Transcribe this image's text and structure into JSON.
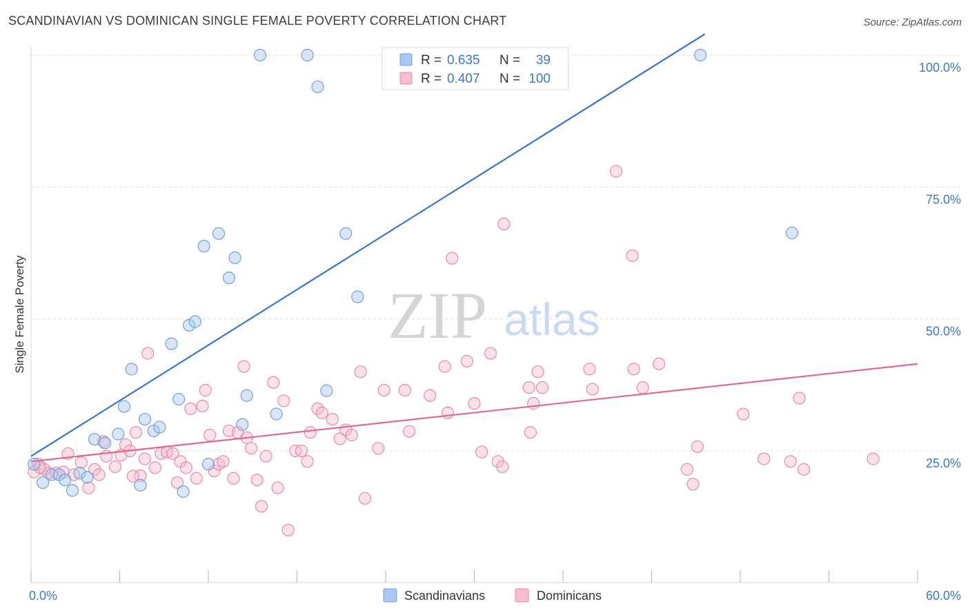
{
  "header": {
    "title": "SCANDINAVIAN VS DOMINICAN SINGLE FEMALE POVERTY CORRELATION CHART",
    "source": "Source: ZipAtlas.com"
  },
  "watermark": {
    "zip": "ZIP",
    "atlas": "atlas"
  },
  "colors": {
    "scandinavian_fill": "#a9c8f0",
    "scandinavian_stroke": "#6fa0dc",
    "scandinavian_line": "#2f74cf",
    "dominican_fill": "#f7bccd",
    "dominican_stroke": "#e88aa6",
    "dominican_line": "#e06890",
    "value_text": "#3a78c9",
    "grid": "#dcdcdc"
  },
  "legend_box": {
    "rows": [
      {
        "r_label": "R =",
        "r_value": "0.635",
        "n_label": "N =",
        "n_value": "39"
      },
      {
        "r_label": "R =",
        "r_value": "0.407",
        "n_label": "N =",
        "n_value": "100"
      }
    ]
  },
  "chart_data": {
    "type": "scatter",
    "title": "SCANDINAVIAN VS DOMINICAN SINGLE FEMALE POVERTY CORRELATION CHART",
    "xlabel": "",
    "ylabel": "Single Female Poverty",
    "xlim": [
      0,
      60
    ],
    "ylim": [
      0,
      104
    ],
    "x_tick_labels": [
      "0.0%",
      "60.0%"
    ],
    "y_ticks": [
      25,
      50,
      75,
      100
    ],
    "y_tick_labels": [
      "25.0%",
      "50.0%",
      "75.0%",
      "100.0%"
    ],
    "grid": true,
    "legend_position": "bottom-center",
    "series": [
      {
        "name": "Scandinavians",
        "r": 0.635,
        "n": 39,
        "trend": {
          "x": [
            0,
            45.6
          ],
          "y": [
            24.0,
            104.0
          ]
        },
        "points": [
          [
            0.2,
            22.5
          ],
          [
            0.8,
            19.0
          ],
          [
            1.4,
            20.5
          ],
          [
            1.9,
            20.5
          ],
          [
            2.3,
            19.5
          ],
          [
            2.8,
            17.5
          ],
          [
            3.3,
            20.8
          ],
          [
            3.8,
            20.0
          ],
          [
            4.3,
            27.2
          ],
          [
            5.0,
            26.5
          ],
          [
            5.9,
            28.2
          ],
          [
            6.3,
            33.4
          ],
          [
            6.8,
            40.5
          ],
          [
            7.4,
            18.5
          ],
          [
            7.7,
            31.0
          ],
          [
            8.3,
            28.8
          ],
          [
            8.7,
            29.5
          ],
          [
            9.5,
            45.3
          ],
          [
            10.0,
            34.8
          ],
          [
            10.3,
            17.3
          ],
          [
            10.7,
            48.8
          ],
          [
            11.1,
            49.5
          ],
          [
            11.7,
            63.8
          ],
          [
            12.0,
            22.5
          ],
          [
            12.7,
            66.2
          ],
          [
            13.4,
            57.8
          ],
          [
            13.8,
            61.6
          ],
          [
            14.3,
            30.0
          ],
          [
            14.6,
            35.5
          ],
          [
            15.5,
            100.0
          ],
          [
            16.6,
            32.0
          ],
          [
            18.7,
            100.0
          ],
          [
            19.4,
            94.0
          ],
          [
            20.0,
            36.4
          ],
          [
            21.3,
            66.2
          ],
          [
            22.1,
            54.2
          ],
          [
            24.3,
            100.0
          ],
          [
            45.3,
            100.0
          ],
          [
            51.5,
            66.3
          ]
        ]
      },
      {
        "name": "Dominicans",
        "r": 0.407,
        "n": 100,
        "trend": {
          "x": [
            0,
            60
          ],
          "y": [
            23.0,
            41.5
          ]
        },
        "points": [
          [
            0.2,
            21.0
          ],
          [
            0.5,
            22.5
          ],
          [
            0.9,
            21.5
          ],
          [
            1.2,
            20.8
          ],
          [
            1.7,
            20.8
          ],
          [
            2.2,
            21.0
          ],
          [
            2.5,
            24.5
          ],
          [
            2.9,
            20.5
          ],
          [
            3.4,
            22.8
          ],
          [
            3.9,
            18.0
          ],
          [
            4.3,
            21.5
          ],
          [
            4.6,
            20.5
          ],
          [
            4.9,
            26.8
          ],
          [
            5.1,
            24.0
          ],
          [
            5.7,
            22.0
          ],
          [
            6.1,
            24.2
          ],
          [
            6.4,
            26.2
          ],
          [
            6.7,
            25.0
          ],
          [
            7.1,
            28.5
          ],
          [
            7.4,
            20.3
          ],
          [
            7.7,
            23.5
          ],
          [
            7.9,
            43.5
          ],
          [
            8.4,
            21.8
          ],
          [
            8.8,
            24.5
          ],
          [
            9.2,
            24.8
          ],
          [
            9.6,
            24.5
          ],
          [
            9.9,
            19.0
          ],
          [
            10.1,
            23.0
          ],
          [
            10.5,
            21.8
          ],
          [
            10.8,
            33.0
          ],
          [
            11.2,
            19.8
          ],
          [
            11.6,
            33.5
          ],
          [
            11.8,
            36.5
          ],
          [
            12.1,
            28.0
          ],
          [
            12.4,
            21.2
          ],
          [
            12.7,
            22.5
          ],
          [
            13.0,
            23.0
          ],
          [
            13.4,
            28.8
          ],
          [
            13.7,
            19.8
          ],
          [
            14.0,
            28.5
          ],
          [
            14.4,
            41.0
          ],
          [
            14.6,
            27.5
          ],
          [
            14.9,
            25.5
          ],
          [
            15.3,
            19.5
          ],
          [
            15.6,
            14.5
          ],
          [
            15.9,
            24.0
          ],
          [
            16.4,
            38.0
          ],
          [
            16.7,
            18.0
          ],
          [
            17.1,
            34.5
          ],
          [
            17.4,
            10.0
          ],
          [
            17.9,
            25.0
          ],
          [
            18.3,
            25.0
          ],
          [
            18.7,
            23.0
          ],
          [
            18.9,
            28.5
          ],
          [
            19.4,
            33.0
          ],
          [
            19.7,
            32.2
          ],
          [
            20.4,
            31.0
          ],
          [
            20.9,
            27.3
          ],
          [
            21.3,
            29.0
          ],
          [
            21.7,
            28.0
          ],
          [
            22.3,
            40.0
          ],
          [
            22.6,
            16.0
          ],
          [
            23.5,
            25.5
          ],
          [
            23.9,
            36.5
          ],
          [
            25.3,
            36.5
          ],
          [
            25.6,
            28.7
          ],
          [
            27.0,
            35.5
          ],
          [
            28.0,
            41.0
          ],
          [
            28.2,
            32.2
          ],
          [
            28.5,
            61.5
          ],
          [
            29.5,
            42.0
          ],
          [
            30.0,
            34.0
          ],
          [
            30.5,
            24.8
          ],
          [
            31.1,
            43.5
          ],
          [
            31.6,
            23.0
          ],
          [
            31.9,
            22.0
          ],
          [
            32.0,
            68.0
          ],
          [
            33.7,
            37.0
          ],
          [
            33.8,
            28.5
          ],
          [
            34.0,
            34.0
          ],
          [
            34.3,
            40.0
          ],
          [
            34.6,
            37.0
          ],
          [
            37.8,
            40.5
          ],
          [
            38.0,
            36.7
          ],
          [
            39.6,
            78.0
          ],
          [
            40.7,
            62.0
          ],
          [
            40.8,
            40.5
          ],
          [
            41.4,
            37.0
          ],
          [
            42.5,
            41.5
          ],
          [
            44.4,
            21.5
          ],
          [
            44.8,
            18.7
          ],
          [
            45.1,
            25.8
          ],
          [
            48.2,
            32.0
          ],
          [
            49.6,
            23.5
          ],
          [
            51.4,
            23.0
          ],
          [
            52.0,
            35.0
          ],
          [
            52.3,
            21.5
          ],
          [
            57.0,
            23.5
          ],
          [
            0.6,
            21.9
          ],
          [
            6.9,
            20.2
          ]
        ]
      }
    ]
  }
}
